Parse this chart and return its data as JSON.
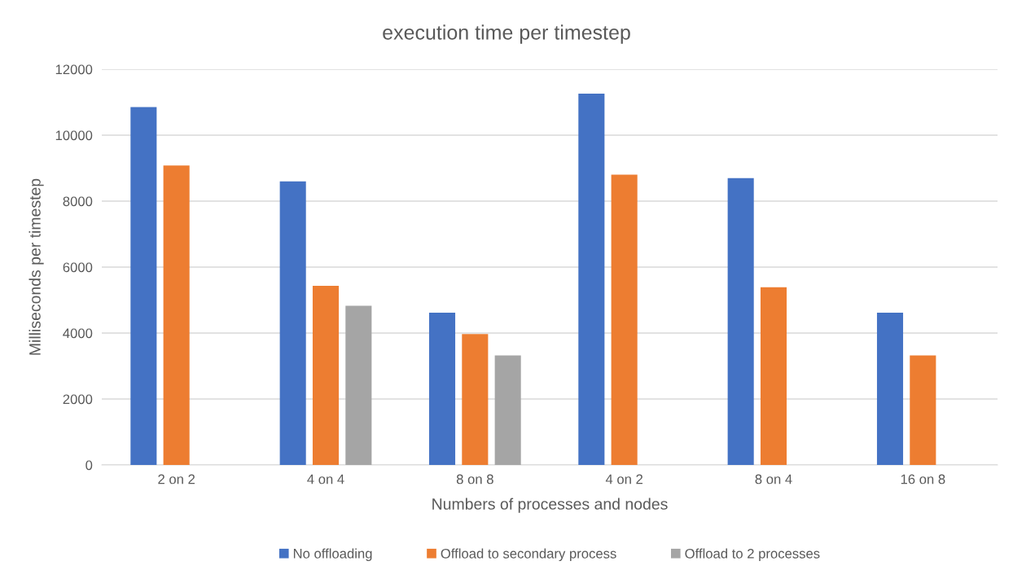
{
  "chart_data": {
    "type": "bar",
    "title": "execution time per timestep",
    "xlabel": "Numbers of processes and nodes",
    "ylabel": "Milliseconds per timestep",
    "categories": [
      "2 on 2",
      "4 on 4",
      "8 on 8",
      "4 on 2",
      "8 on 4",
      "16 on 8"
    ],
    "series": [
      {
        "name": "No offloading",
        "color": "#4472c4",
        "values": [
          10850,
          8600,
          4620,
          11260,
          8700,
          4620
        ]
      },
      {
        "name": "Offload to secondary process",
        "color": "#ed7d31",
        "values": [
          9080,
          5430,
          3970,
          8800,
          5390,
          3320
        ]
      },
      {
        "name": "Offload to 2 processes",
        "color": "#a5a5a5",
        "values": [
          null,
          4830,
          3320,
          null,
          null,
          null
        ]
      }
    ],
    "ylim": [
      0,
      12000
    ],
    "yticks": [
      0,
      2000,
      4000,
      6000,
      8000,
      10000,
      12000
    ],
    "grid": "y",
    "legend": "bottom"
  }
}
